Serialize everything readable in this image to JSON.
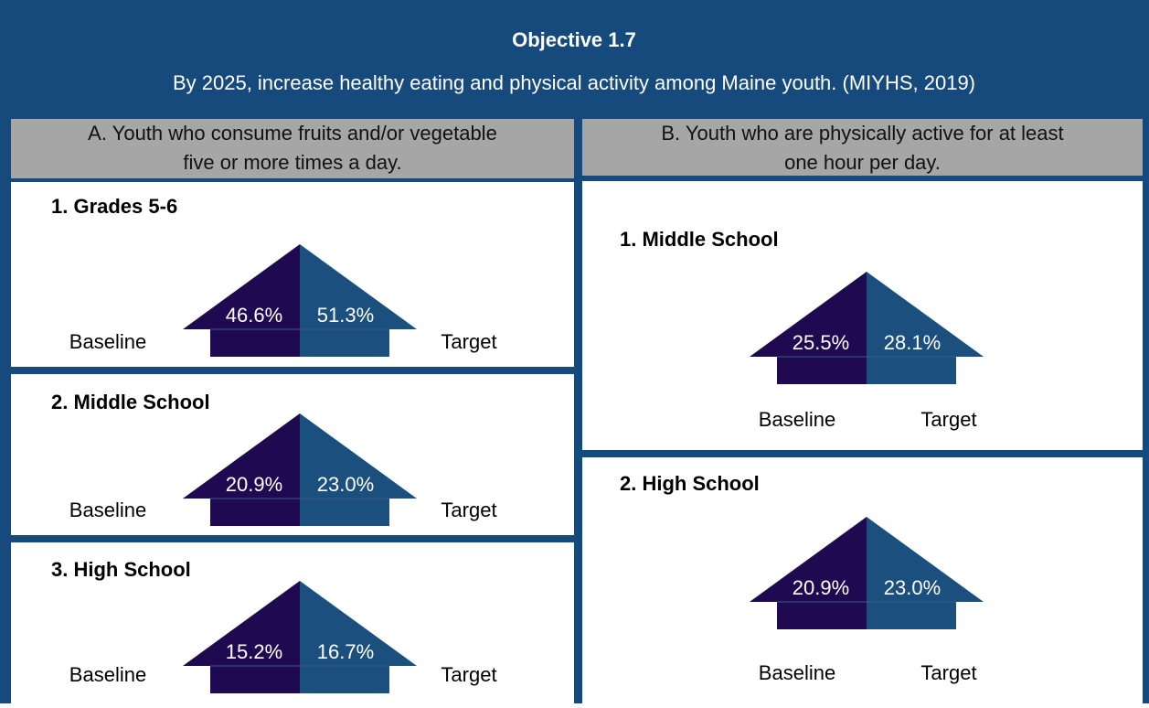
{
  "header": {
    "title": "Objective 1.7",
    "subtitle": "By 2025, increase healthy eating and physical activity among Maine youth. (MIYHS, 2019)"
  },
  "labels": {
    "baseline": "Baseline",
    "target": "Target"
  },
  "columns": [
    {
      "heading": [
        "A. Youth who consume fruits and/or vegetable",
        "five or more times a day."
      ],
      "items": [
        {
          "label": "1. Grades 5-6",
          "baseline": "46.6%",
          "target": "51.3%"
        },
        {
          "label": "2. Middle School",
          "baseline": "20.9%",
          "target": "23.0%"
        },
        {
          "label": "3. High School",
          "baseline": "15.2%",
          "target": "16.7%"
        }
      ]
    },
    {
      "heading": [
        "B. Youth who are physically active for at least",
        "one hour per day."
      ],
      "items": [
        {
          "label": "1. Middle School",
          "baseline": "25.5%",
          "target": "28.1%"
        },
        {
          "label": "2. High School",
          "baseline": "20.9%",
          "target": "23.0%"
        }
      ]
    }
  ]
}
